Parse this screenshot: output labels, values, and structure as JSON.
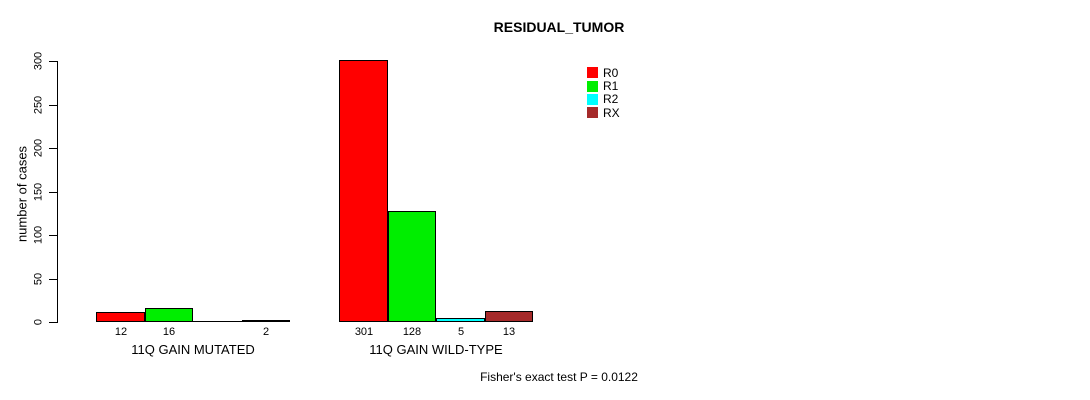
{
  "chart_data": {
    "type": "bar",
    "title": "RESIDUAL_TUMOR",
    "xlabel": "",
    "ylabel": "number of cases",
    "ylim": [
      0,
      300
    ],
    "yticks": [
      0,
      50,
      100,
      150,
      200,
      250,
      300
    ],
    "grid": false,
    "legend_position": "inside-top-right",
    "categories": [
      "11Q GAIN MUTATED",
      "11Q GAIN WILD-TYPE"
    ],
    "series": [
      {
        "name": "R0",
        "color": "#ff0000",
        "values": [
          12,
          301
        ]
      },
      {
        "name": "R1",
        "color": "#00ee00",
        "values": [
          16,
          128
        ]
      },
      {
        "name": "R2",
        "color": "#00ffff",
        "values": [
          0,
          5
        ]
      },
      {
        "name": "RX",
        "color": "#a52a2a",
        "values": [
          2,
          13
        ]
      }
    ],
    "bar_value_labels": [
      [
        "12",
        "16",
        "",
        "2"
      ],
      [
        "301",
        "128",
        "5",
        "13"
      ]
    ],
    "annotation": "Fisher's exact test P = 0.0122"
  }
}
